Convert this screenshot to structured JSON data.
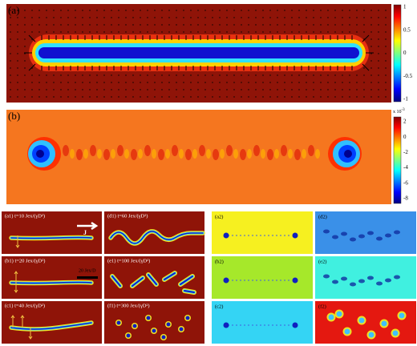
{
  "panel_a": {
    "label": "(a)",
    "colorbar_ticks": [
      1,
      0.5,
      0,
      -0.5,
      -1
    ]
  },
  "panel_b": {
    "label": "(b)",
    "colorbar_multiplier": "x 10",
    "colorbar_exponent": "-3",
    "colorbar_ticks": [
      2,
      0,
      -2,
      -4,
      -6,
      -8
    ]
  },
  "sequence_left": {
    "current_label": "J",
    "scale_label": "20 Jex/D",
    "panels": [
      "(a1) t=10 Jex/(γD²)",
      "(d1) t=60 Jex/(γD²)",
      "(b1) t=20 Jex/(γD²)",
      "(e1) t=100 Jex/(γD²)",
      "(c1) t=40 Jex/(γD²)",
      "(f1) t=300 Jex/(γD²)"
    ]
  },
  "sequence_right": {
    "panels": [
      "(a2)",
      "(d2)",
      "(b2)",
      "(e2)",
      "(c2)",
      "(f2)"
    ]
  }
}
